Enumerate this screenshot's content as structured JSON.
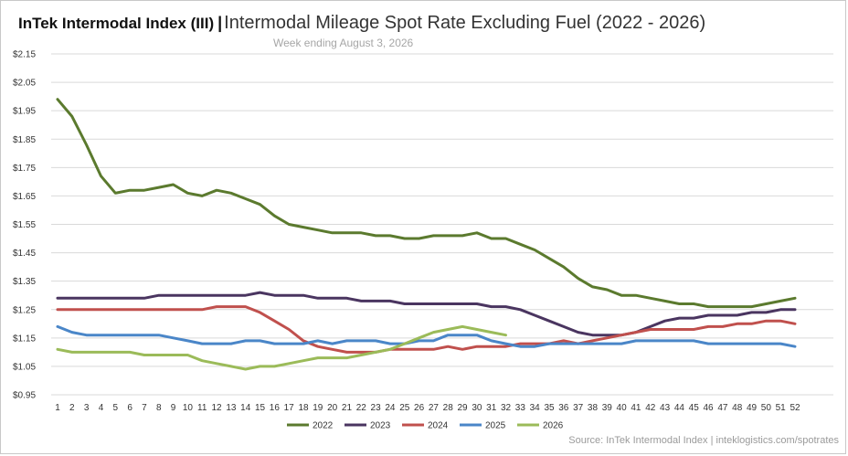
{
  "title": {
    "main": "InTek Intermodal Index (III)",
    "separator": "|",
    "subtitle": "Intermodal Mileage Spot Rate Excluding Fuel (2022 - 2026)"
  },
  "week_label": "Week ending August 3, 2026",
  "source": "Source: InTek Intermodal Index | inteklogistics.com/spotrates",
  "chart_data": {
    "type": "line",
    "title": "Intermodal Mileage Spot Rate Excluding Fuel (2022 - 2026)",
    "xlabel": "",
    "ylabel": "",
    "x": [
      1,
      2,
      3,
      4,
      5,
      6,
      7,
      8,
      9,
      10,
      11,
      12,
      13,
      14,
      15,
      16,
      17,
      18,
      19,
      20,
      21,
      22,
      23,
      24,
      25,
      26,
      27,
      28,
      29,
      30,
      31,
      32,
      33,
      34,
      35,
      36,
      37,
      38,
      39,
      40,
      41,
      42,
      43,
      44,
      45,
      46,
      47,
      48,
      49,
      50,
      51,
      52
    ],
    "ylim": [
      0.95,
      2.15
    ],
    "yticks": [
      2.15,
      2.05,
      1.95,
      1.85,
      1.75,
      1.65,
      1.55,
      1.45,
      1.35,
      1.25,
      1.15,
      1.05,
      0.95
    ],
    "ytick_labels": [
      "$2.15",
      "$2.05",
      "$1.95",
      "$1.85",
      "$1.75",
      "$1.65",
      "$1.55",
      "$1.45",
      "$1.35",
      "$1.25",
      "$1.15",
      "$1.05",
      "$0.95"
    ],
    "grid": true,
    "legend_position": "bottom",
    "series": [
      {
        "name": "2022",
        "color": "#5b7a2e",
        "values": [
          1.99,
          1.93,
          1.83,
          1.72,
          1.66,
          1.67,
          1.67,
          1.68,
          1.69,
          1.66,
          1.65,
          1.67,
          1.66,
          1.64,
          1.62,
          1.58,
          1.55,
          1.54,
          1.53,
          1.52,
          1.52,
          1.52,
          1.51,
          1.51,
          1.5,
          1.5,
          1.51,
          1.51,
          1.51,
          1.52,
          1.5,
          1.5,
          1.48,
          1.46,
          1.43,
          1.4,
          1.36,
          1.33,
          1.32,
          1.3,
          1.3,
          1.29,
          1.28,
          1.27,
          1.27,
          1.26,
          1.26,
          1.26,
          1.26,
          1.27,
          1.28,
          1.29
        ]
      },
      {
        "name": "2023",
        "color": "#4a3560",
        "values": [
          1.29,
          1.29,
          1.29,
          1.29,
          1.29,
          1.29,
          1.29,
          1.3,
          1.3,
          1.3,
          1.3,
          1.3,
          1.3,
          1.3,
          1.31,
          1.3,
          1.3,
          1.3,
          1.29,
          1.29,
          1.29,
          1.28,
          1.28,
          1.28,
          1.27,
          1.27,
          1.27,
          1.27,
          1.27,
          1.27,
          1.26,
          1.26,
          1.25,
          1.23,
          1.21,
          1.19,
          1.17,
          1.16,
          1.16,
          1.16,
          1.17,
          1.19,
          1.21,
          1.22,
          1.22,
          1.23,
          1.23,
          1.23,
          1.24,
          1.24,
          1.25,
          1.25
        ]
      },
      {
        "name": "2024",
        "color": "#c0504d",
        "values": [
          1.25,
          1.25,
          1.25,
          1.25,
          1.25,
          1.25,
          1.25,
          1.25,
          1.25,
          1.25,
          1.25,
          1.26,
          1.26,
          1.26,
          1.24,
          1.21,
          1.18,
          1.14,
          1.12,
          1.11,
          1.1,
          1.1,
          1.1,
          1.11,
          1.11,
          1.11,
          1.11,
          1.12,
          1.11,
          1.12,
          1.12,
          1.12,
          1.13,
          1.13,
          1.13,
          1.14,
          1.13,
          1.14,
          1.15,
          1.16,
          1.17,
          1.18,
          1.18,
          1.18,
          1.18,
          1.19,
          1.19,
          1.2,
          1.2,
          1.21,
          1.21,
          1.2
        ]
      },
      {
        "name": "2025",
        "color": "#4a86c8",
        "values": [
          1.19,
          1.17,
          1.16,
          1.16,
          1.16,
          1.16,
          1.16,
          1.16,
          1.15,
          1.14,
          1.13,
          1.13,
          1.13,
          1.14,
          1.14,
          1.13,
          1.13,
          1.13,
          1.14,
          1.13,
          1.14,
          1.14,
          1.14,
          1.13,
          1.13,
          1.14,
          1.14,
          1.16,
          1.16,
          1.16,
          1.14,
          1.13,
          1.12,
          1.12,
          1.13,
          1.13,
          1.13,
          1.13,
          1.13,
          1.13,
          1.14,
          1.14,
          1.14,
          1.14,
          1.14,
          1.13,
          1.13,
          1.13,
          1.13,
          1.13,
          1.13,
          1.12
        ]
      },
      {
        "name": "2026",
        "color": "#9bbb59",
        "values": [
          1.11,
          1.1,
          1.1,
          1.1,
          1.1,
          1.1,
          1.09,
          1.09,
          1.09,
          1.09,
          1.07,
          1.06,
          1.05,
          1.04,
          1.05,
          1.05,
          1.06,
          1.07,
          1.08,
          1.08,
          1.08,
          1.09,
          1.1,
          1.11,
          1.13,
          1.15,
          1.17,
          1.18,
          1.19,
          1.18,
          1.17,
          1.16,
          null,
          null,
          null,
          null,
          null,
          null,
          null,
          null,
          null,
          null,
          null,
          null,
          null,
          null,
          null,
          null,
          null,
          null,
          null,
          null
        ]
      }
    ]
  }
}
